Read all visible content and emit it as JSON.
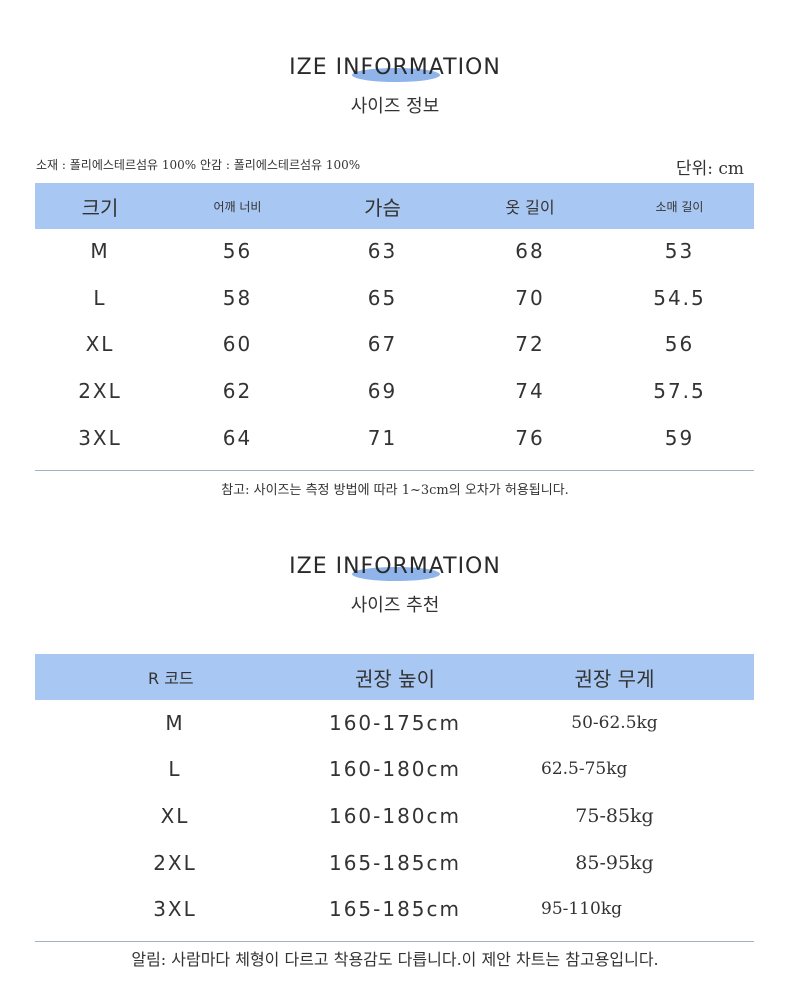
{
  "size_section": {
    "title": "IZE INFORMATION",
    "subtitle": "사이즈 정보",
    "material": "소재 : 폴리에스테르섬유 100% 안감 : 폴리에스테르섬유 100%",
    "unit": "단위: cm",
    "headers": [
      "크기",
      "어깨 너비",
      "가슴",
      "옷 길이",
      "소매 길이"
    ],
    "rows": [
      [
        "M",
        "56",
        "63",
        "68",
        "53"
      ],
      [
        "L",
        "58",
        "65",
        "70",
        "54.5"
      ],
      [
        "XL",
        "60",
        "67",
        "72",
        "56"
      ],
      [
        "2XL",
        "62",
        "69",
        "74",
        "57.5"
      ],
      [
        "3XL",
        "64",
        "71",
        "76",
        "59"
      ]
    ],
    "note": "참고: 사이즈는 측정 방법에 따라 1~3cm의 오차가 허용됩니다."
  },
  "recommend_section": {
    "title": "IZE INFORMATION",
    "subtitle": "사이즈 추천",
    "headers": [
      "R 코드",
      "권장 높이",
      "권장 무게"
    ],
    "rows": [
      [
        "M",
        "160-175cm",
        "50-62.5kg"
      ],
      [
        "L",
        "160-180cm",
        "62.5-75kg"
      ],
      [
        "XL",
        "160-180cm",
        "75-85kg"
      ],
      [
        "2XL",
        "165-185cm",
        "85-95kg"
      ],
      [
        "3XL",
        "165-185cm",
        "95-110kg"
      ]
    ],
    "note": "알림: 사람마다 체형이 다르고 착용감도 다릅니다.이 제안 차트는 참고용입니다."
  },
  "colors": {
    "header_bg": "#a8c7f2",
    "accent_oval": "#8fb4ea",
    "divider": "#9bb4c8"
  }
}
